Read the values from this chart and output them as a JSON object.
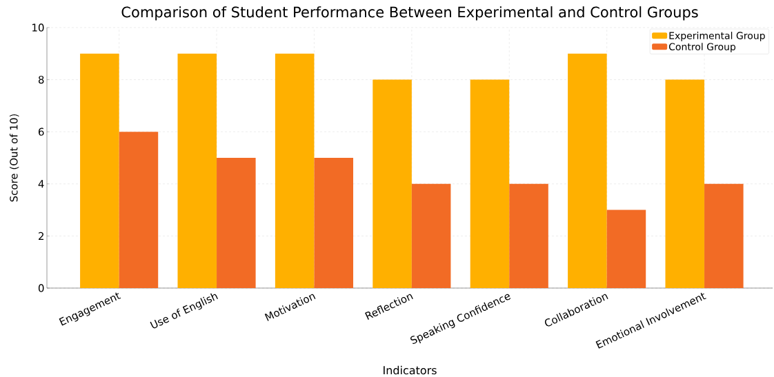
{
  "chart_data": {
    "type": "bar",
    "title": "Comparison of Student Performance Between Experimental and Control Groups",
    "xlabel": "Indicators",
    "ylabel": "Score (Out of 10)",
    "categories": [
      "Engagement",
      "Use of English",
      "Motivation",
      "Reflection",
      "Speaking Confidence",
      "Collaboration",
      "Emotional Involvement"
    ],
    "series": [
      {
        "name": "Experimental Group",
        "color": "#ffb000",
        "values": [
          9,
          9,
          9,
          8,
          8,
          9,
          8
        ]
      },
      {
        "name": "Control Group",
        "color": "#f26b25",
        "values": [
          6,
          5,
          5,
          4,
          4,
          3,
          4
        ]
      }
    ],
    "ylim": [
      0,
      10
    ],
    "yticks": [
      0,
      2,
      4,
      6,
      8,
      10
    ],
    "grid": true,
    "legend": "top right"
  }
}
